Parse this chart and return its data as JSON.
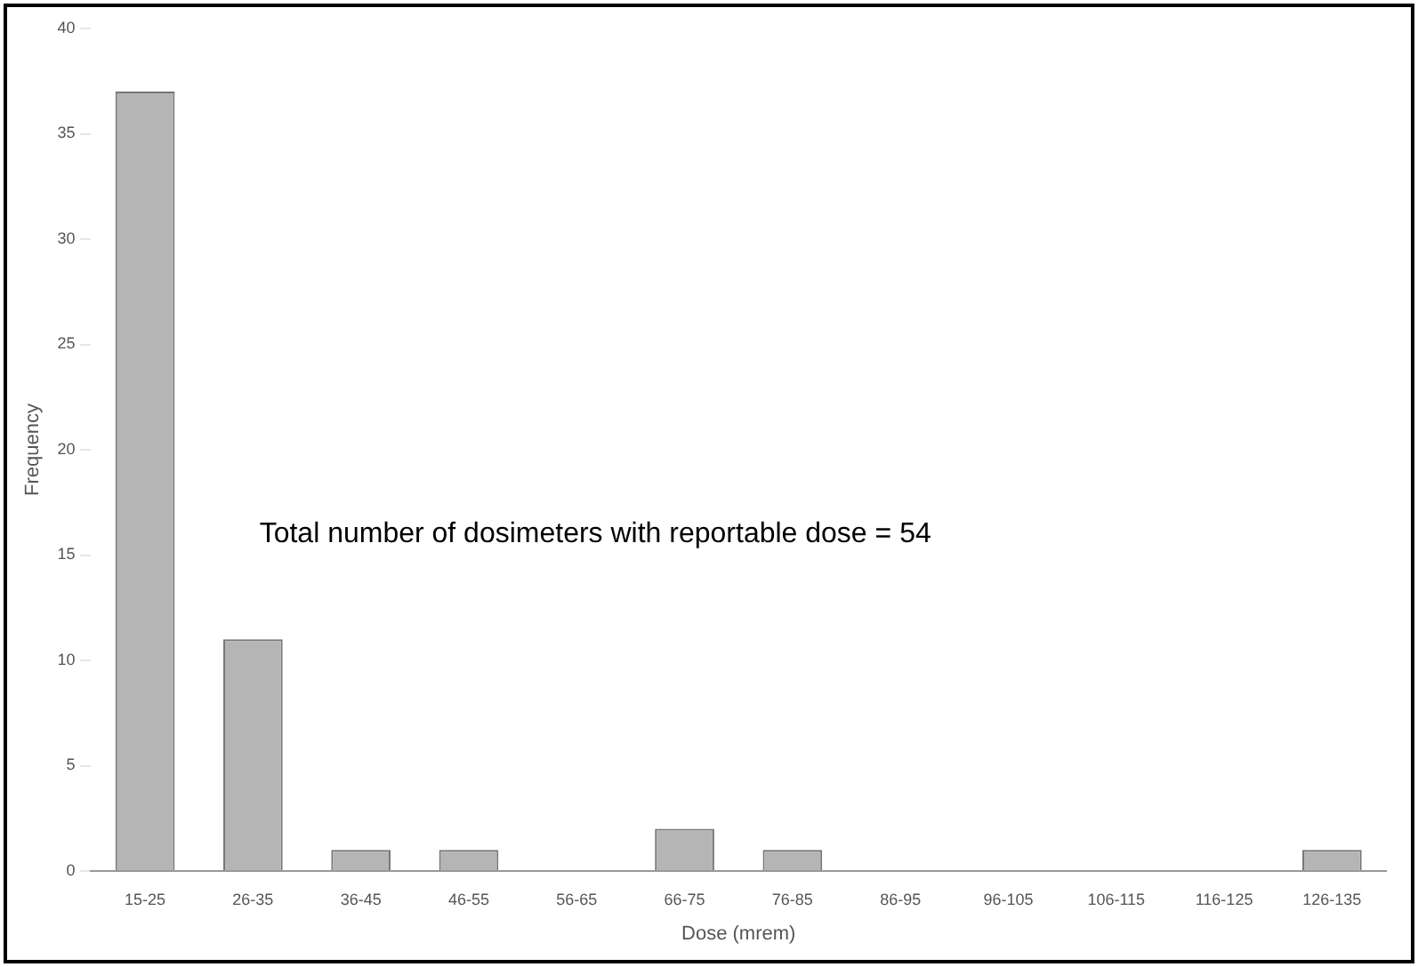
{
  "chart_data": {
    "type": "bar",
    "xlabel": "Dose (mrem)",
    "ylabel": "Frequency",
    "categories": [
      "15-25",
      "26-35",
      "36-45",
      "46-55",
      "56-65",
      "66-75",
      "76-85",
      "86-95",
      "96-105",
      "106-115",
      "116-125",
      "126-135"
    ],
    "values": [
      37,
      11,
      1,
      1,
      0,
      2,
      1,
      0,
      0,
      0,
      0,
      1
    ],
    "color": "#b5b5b5",
    "ylim": [
      0,
      40
    ],
    "yticks": [
      0,
      5,
      10,
      15,
      20,
      25,
      30,
      35,
      40
    ],
    "grid": false,
    "legend": false,
    "annotations": [
      "Total number of dosimeters with reportable dose = 54"
    ]
  }
}
